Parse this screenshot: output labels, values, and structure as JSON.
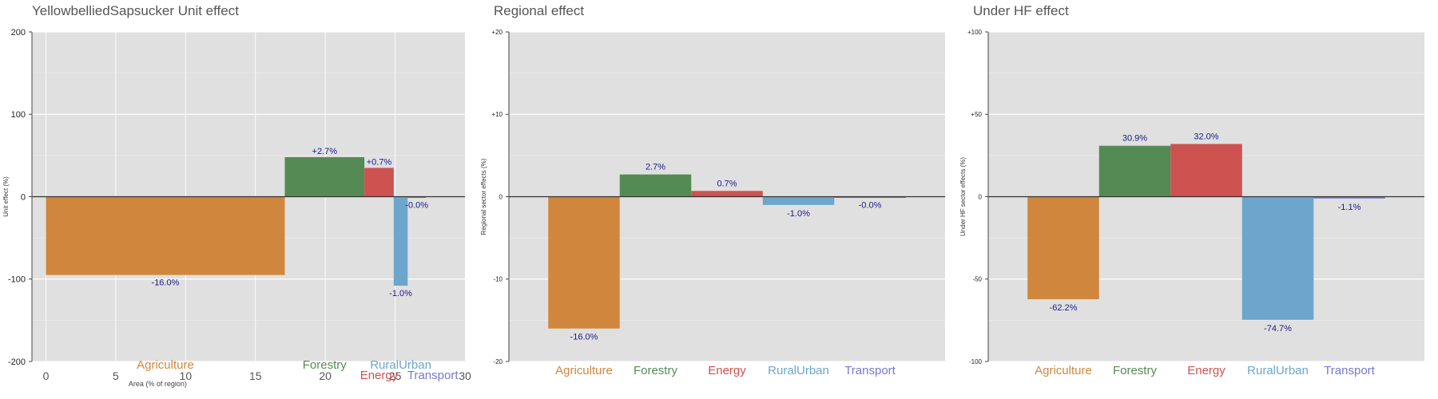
{
  "chart_data": [
    {
      "type": "bar",
      "title": "YellowbelliedSapsucker Unit effect",
      "xlabel": "Area (% of region)",
      "ylabel": "Unit effect (%)",
      "xlim": [
        -1,
        30
      ],
      "ylim": [
        -200,
        200
      ],
      "xticks": [
        "0",
        "5",
        "10",
        "15",
        "20",
        "25",
        "30"
      ],
      "yticks": [
        "200",
        "100",
        "0",
        "-100",
        "-200"
      ],
      "categories": [
        "Agriculture",
        "Forestry",
        "Energy",
        "RuralUrban",
        "Transport"
      ],
      "bars": [
        {
          "category": "Agriculture",
          "x0": 0,
          "x1": 17.1,
          "value": -95,
          "label": "-16.0%"
        },
        {
          "category": "Forestry",
          "x0": 17.1,
          "x1": 22.8,
          "value": 48,
          "label": "+2.7%"
        },
        {
          "category": "Energy",
          "x0": 22.8,
          "x1": 24.9,
          "value": 35,
          "label": "+0.7%"
        },
        {
          "category": "RuralUrban",
          "x0": 24.9,
          "x1": 25.9,
          "value": -108,
          "label": "-1.0%"
        },
        {
          "category": "Transport",
          "x0": 25.9,
          "x1": 27.2,
          "value": -1,
          "label": "-0.0%"
        }
      ],
      "grid": true
    },
    {
      "type": "bar",
      "title": "Regional effect",
      "ylabel": "Regional sector effects (%)",
      "ylim": [
        -20,
        20
      ],
      "yticks": [
        "+20",
        "+10",
        "0",
        "-10",
        "-20"
      ],
      "categories": [
        "Agriculture",
        "Forestry",
        "Energy",
        "RuralUrban",
        "Transport"
      ],
      "values": [
        -16.0,
        2.7,
        0.7,
        -1.0,
        -0.0
      ],
      "labels": [
        "-16.0%",
        "2.7%",
        "0.7%",
        "-1.0%",
        "-0.0%"
      ],
      "grid": true
    },
    {
      "type": "bar",
      "title": "Under HF effect",
      "ylabel": "Under HF sector effects (%)",
      "ylim": [
        -100,
        100
      ],
      "yticks": [
        "+100",
        "+50",
        "0",
        "-50",
        "-100"
      ],
      "categories": [
        "Agriculture",
        "Forestry",
        "Energy",
        "RuralUrban",
        "Transport"
      ],
      "values": [
        -62.2,
        30.9,
        32.0,
        -74.7,
        -1.1
      ],
      "labels": [
        "-62.2%",
        "30.9%",
        "32.0%",
        "-74.7%",
        "-1.1%"
      ],
      "grid": true
    }
  ],
  "colors": {
    "Agriculture": "#d0873d",
    "Forestry": "#548b54",
    "Energy": "#cd5250",
    "RuralUrban": "#6ca6cd",
    "Transport": "#7878d2",
    "plot_bg": "#e0e0e0",
    "label_text": "#1a1a8c"
  }
}
